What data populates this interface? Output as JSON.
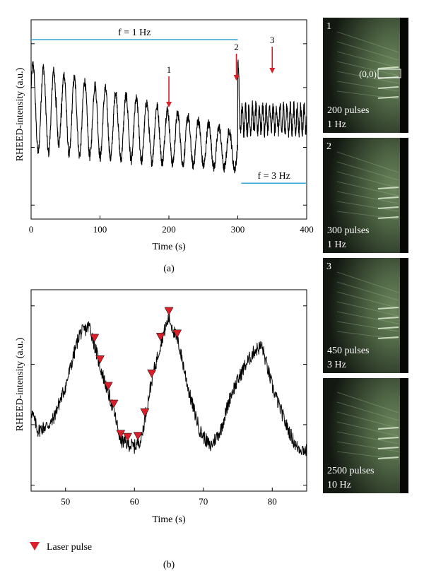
{
  "colors": {
    "trace": "#000000",
    "frequency_line": "#3aa6d8",
    "arrow": "#d9202a",
    "marker": "#d9202a",
    "rheed_background": "#0d110b",
    "rheed_glow": "#6d8a5e",
    "rheed_text": "#ffffff"
  },
  "chart_data": [
    {
      "id": "a",
      "type": "line",
      "panel_label": "(a)",
      "xlabel": "Time (s)",
      "ylabel": "RHEED-intensity (a.u.)",
      "xlim": [
        0,
        400
      ],
      "ylim": [
        0,
        1
      ],
      "xticks": [
        0,
        100,
        200,
        300,
        400
      ],
      "yticks_labeled": false,
      "series": [
        {
          "segments": [
            {
              "x_start": 0,
              "x_end": 300,
              "period_s": 15,
              "baseline_start": 0.56,
              "baseline_end": 0.34,
              "amplitude_start": 0.22,
              "amplitude_end": 0.09
            },
            {
              "x_start": 300,
              "x_end": 400,
              "period_s": 5,
              "baseline": 0.5,
              "amplitude": 0.06
            }
          ]
        }
      ],
      "annotations": [
        {
          "text": "f = 1 Hz",
          "x_start": 0,
          "x_end": 300,
          "y": 0.9
        },
        {
          "text": "f = 3 Hz",
          "x_start": 305,
          "x_end": 400,
          "y": 0.18
        },
        {
          "text": "1",
          "x": 200
        },
        {
          "text": "2",
          "x": 300
        },
        {
          "text": "3",
          "x": 350
        }
      ]
    },
    {
      "id": "b",
      "type": "line",
      "panel_label": "(b)",
      "xlabel": "Time (s)",
      "ylabel": "RHEED-intensity (a.u.)",
      "xlim": [
        45,
        85
      ],
      "ylim": [
        0,
        1
      ],
      "xticks": [
        50,
        60,
        70,
        80
      ],
      "yticks_labeled": false,
      "series": [
        {
          "keypoints": [
            [
              45,
              0.4
            ],
            [
              46,
              0.3
            ],
            [
              48,
              0.34
            ],
            [
              50,
              0.52
            ],
            [
              52,
              0.78
            ],
            [
              53.5,
              0.82
            ],
            [
              55,
              0.62
            ],
            [
              57,
              0.4
            ],
            [
              58,
              0.25
            ],
            [
              60,
              0.22
            ],
            [
              61,
              0.26
            ],
            [
              62.5,
              0.55
            ],
            [
              64,
              0.76
            ],
            [
              65,
              0.86
            ],
            [
              66.5,
              0.72
            ],
            [
              68,
              0.48
            ],
            [
              69.5,
              0.3
            ],
            [
              71,
              0.22
            ],
            [
              72.5,
              0.3
            ],
            [
              74,
              0.48
            ],
            [
              76,
              0.62
            ],
            [
              77.5,
              0.7
            ],
            [
              78.5,
              0.72
            ],
            [
              80,
              0.52
            ],
            [
              82,
              0.33
            ],
            [
              83.5,
              0.22
            ],
            [
              85,
              0.2
            ]
          ]
        }
      ],
      "markers": [
        {
          "name": "Laser pulse",
          "x": [
            54.2,
            55,
            56.2,
            57,
            58,
            59,
            60.5,
            61.5,
            62.5,
            63.8,
            65,
            66.2
          ]
        }
      ],
      "legend": {
        "label": "Laser pulse",
        "placement": "bottom-left"
      }
    }
  ],
  "rheed_images": [
    {
      "number": "1",
      "pulses": "200 pulses",
      "freq": "1 Hz",
      "label": "(0,0)"
    },
    {
      "number": "2",
      "pulses": "300 pulses",
      "freq": "1 Hz"
    },
    {
      "number": "3",
      "pulses": "450 pulses",
      "freq": "3 Hz"
    },
    {
      "number": "",
      "pulses": "2500 pulses",
      "freq": "10 Hz"
    }
  ]
}
